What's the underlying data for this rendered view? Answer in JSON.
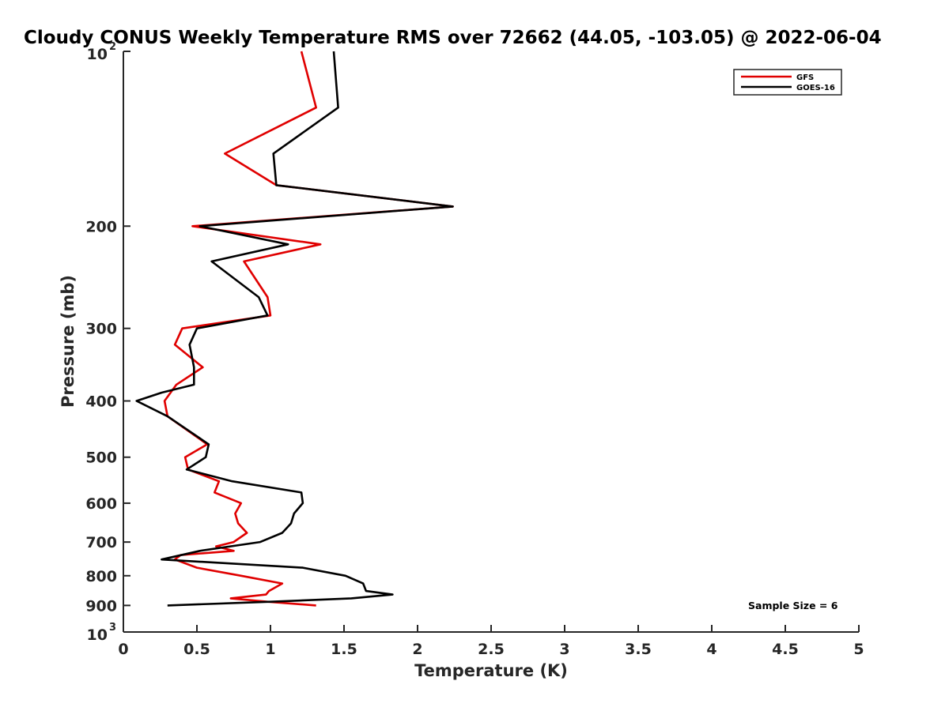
{
  "chart_data": {
    "type": "line",
    "title": "Cloudy CONUS Weekly Temperature RMS over 72662 (44.05, -103.05) @ 2022-06-04",
    "xlabel": "Temperature (K)",
    "ylabel": "Pressure (mb)",
    "xlim": [
      0,
      5
    ],
    "ylim": [
      100,
      1000
    ],
    "yscale": "log",
    "y_reversed": true,
    "grid": false,
    "legend_position": "top-right",
    "x_ticks": [
      {
        "value": 0,
        "label": "0"
      },
      {
        "value": 0.5,
        "label": "0.5"
      },
      {
        "value": 1,
        "label": "1"
      },
      {
        "value": 1.5,
        "label": "1.5"
      },
      {
        "value": 2,
        "label": "2"
      },
      {
        "value": 2.5,
        "label": "2.5"
      },
      {
        "value": 3,
        "label": "3"
      },
      {
        "value": 3.5,
        "label": "3.5"
      },
      {
        "value": 4,
        "label": "4"
      },
      {
        "value": 4.5,
        "label": "4.5"
      },
      {
        "value": 5,
        "label": "5"
      }
    ],
    "y_ticks": [
      {
        "value": 100,
        "base": "10",
        "exp": "2"
      },
      {
        "value": 200,
        "label": "200"
      },
      {
        "value": 300,
        "label": "300"
      },
      {
        "value": 400,
        "label": "400"
      },
      {
        "value": 500,
        "label": "500"
      },
      {
        "value": 600,
        "label": "600"
      },
      {
        "value": 700,
        "label": "700"
      },
      {
        "value": 800,
        "label": "800"
      },
      {
        "value": 900,
        "label": "900"
      },
      {
        "value": 1000,
        "base": "10",
        "exp": "3"
      }
    ],
    "annotation": "Sample Size = 6",
    "series": [
      {
        "name": "GFS",
        "color": "#e00000",
        "points": [
          [
            1.21,
            100
          ],
          [
            1.31,
            125
          ],
          [
            0.69,
            150
          ],
          [
            1.04,
            170
          ],
          [
            2.24,
            185
          ],
          [
            0.47,
            200
          ],
          [
            1.34,
            215
          ],
          [
            0.82,
            230
          ],
          [
            0.98,
            265
          ],
          [
            1.0,
            285
          ],
          [
            0.4,
            300
          ],
          [
            0.35,
            320
          ],
          [
            0.54,
            350
          ],
          [
            0.36,
            375
          ],
          [
            0.28,
            400
          ],
          [
            0.3,
            425
          ],
          [
            0.57,
            475
          ],
          [
            0.42,
            500
          ],
          [
            0.44,
            525
          ],
          [
            0.65,
            550
          ],
          [
            0.62,
            575
          ],
          [
            0.8,
            600
          ],
          [
            0.76,
            625
          ],
          [
            0.78,
            650
          ],
          [
            0.84,
            675
          ],
          [
            0.75,
            700
          ],
          [
            0.63,
            712
          ],
          [
            0.75,
            725
          ],
          [
            0.39,
            737
          ],
          [
            0.35,
            750
          ],
          [
            0.5,
            775
          ],
          [
            0.8,
            800
          ],
          [
            1.08,
            825
          ],
          [
            0.99,
            850
          ],
          [
            0.97,
            862
          ],
          [
            0.73,
            875
          ],
          [
            0.98,
            887
          ],
          [
            1.31,
            900
          ]
        ]
      },
      {
        "name": "GOES-16",
        "color": "#000000",
        "points": [
          [
            1.43,
            100
          ],
          [
            1.46,
            125
          ],
          [
            1.02,
            150
          ],
          [
            1.04,
            170
          ],
          [
            2.24,
            185
          ],
          [
            0.52,
            200
          ],
          [
            1.12,
            215
          ],
          [
            0.6,
            230
          ],
          [
            0.92,
            265
          ],
          [
            0.98,
            285
          ],
          [
            0.5,
            300
          ],
          [
            0.45,
            320
          ],
          [
            0.48,
            350
          ],
          [
            0.48,
            375
          ],
          [
            0.26,
            387
          ],
          [
            0.09,
            400
          ],
          [
            0.3,
            425
          ],
          [
            0.58,
            475
          ],
          [
            0.56,
            500
          ],
          [
            0.43,
            525
          ],
          [
            0.74,
            550
          ],
          [
            1.21,
            575
          ],
          [
            1.22,
            600
          ],
          [
            1.16,
            625
          ],
          [
            1.14,
            650
          ],
          [
            1.08,
            675
          ],
          [
            0.93,
            700
          ],
          [
            0.52,
            725
          ],
          [
            0.26,
            750
          ],
          [
            1.22,
            775
          ],
          [
            1.51,
            800
          ],
          [
            1.63,
            825
          ],
          [
            1.65,
            850
          ],
          [
            1.83,
            862
          ],
          [
            1.55,
            875
          ],
          [
            1.0,
            887
          ],
          [
            0.3,
            900
          ]
        ]
      }
    ]
  }
}
